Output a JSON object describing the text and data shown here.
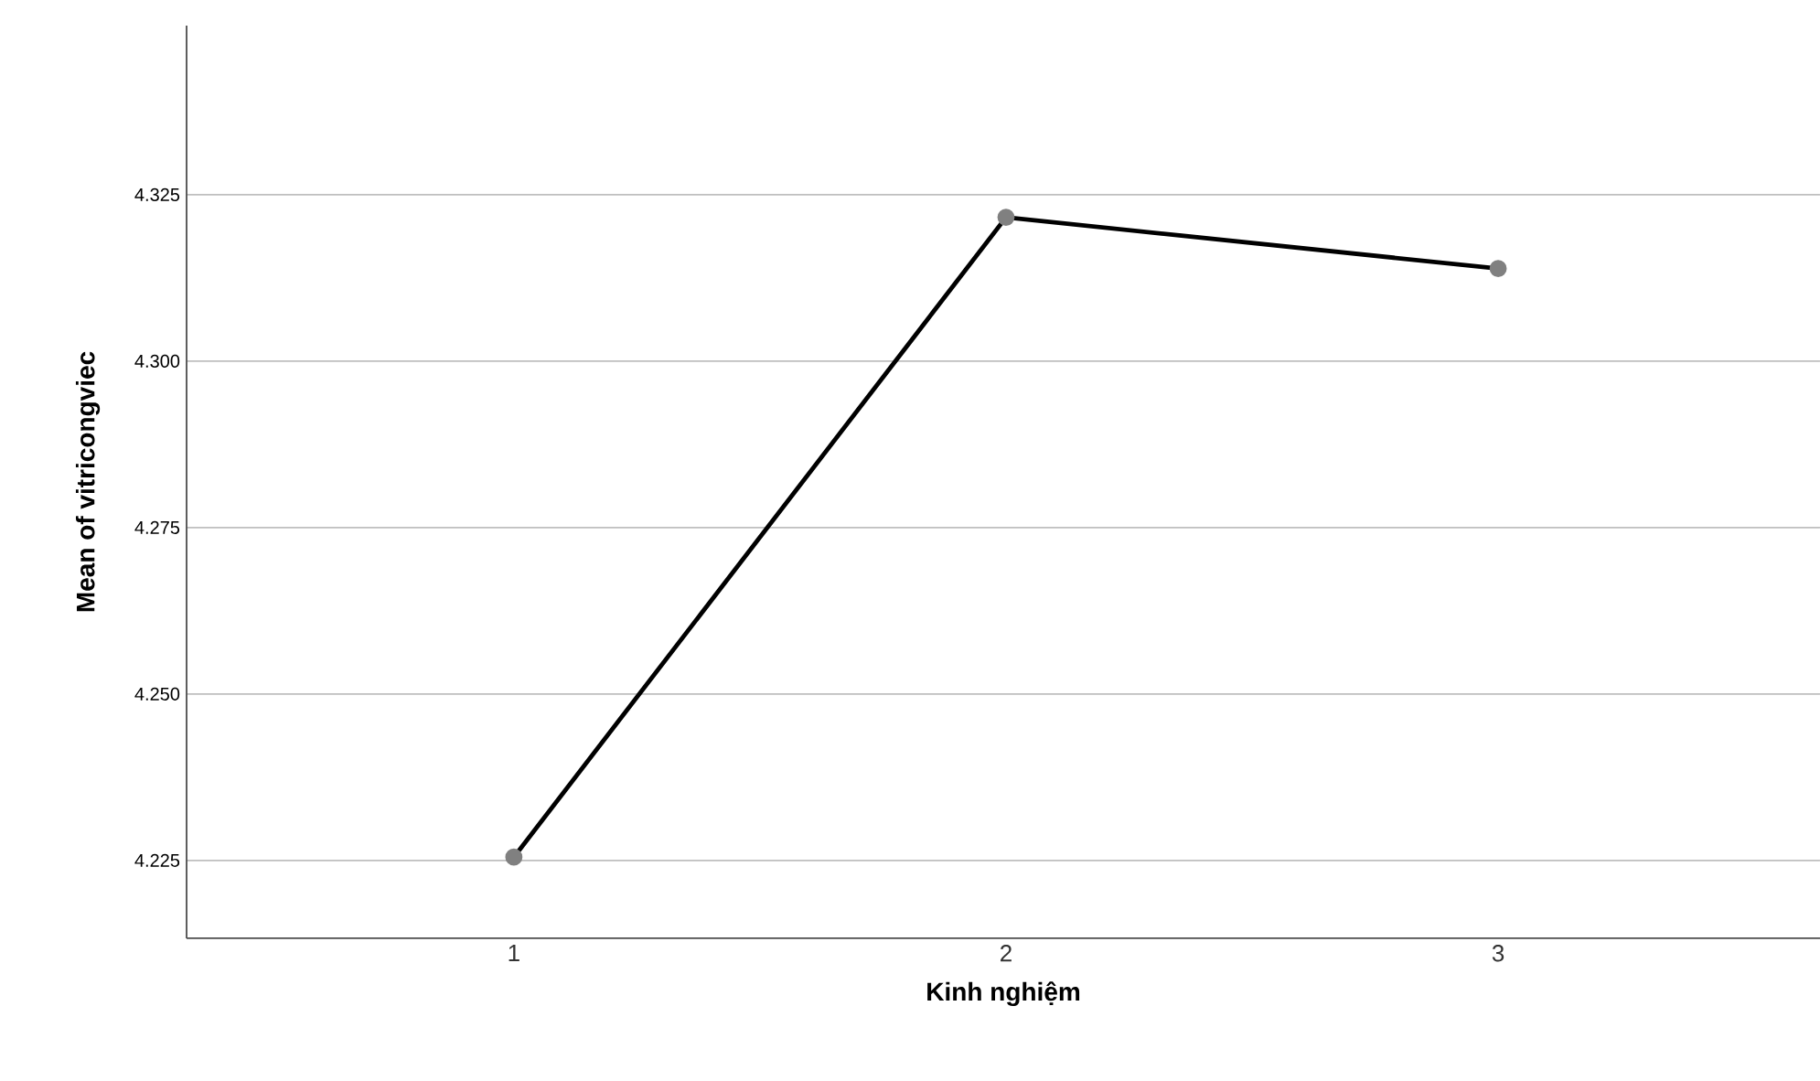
{
  "chart_data": {
    "type": "line",
    "xlabel": "Kinh nghiệm",
    "ylabel": "Mean of vitricongviec",
    "categories": [
      "1",
      "2",
      "3"
    ],
    "series": [
      {
        "color": "#000000",
        "values": [
          4.2255,
          4.3216,
          4.3139
        ]
      }
    ],
    "ylim": [
      4.2133,
      4.3504
    ],
    "yticks": [
      4.225,
      {
        "value": 4.25,
        "label": "4.250"
      },
      4.275,
      {
        "value": 4.3,
        "label": "4.300"
      },
      4.325
    ],
    "grid": "y",
    "marker": "circle",
    "line_style": "solid"
  }
}
